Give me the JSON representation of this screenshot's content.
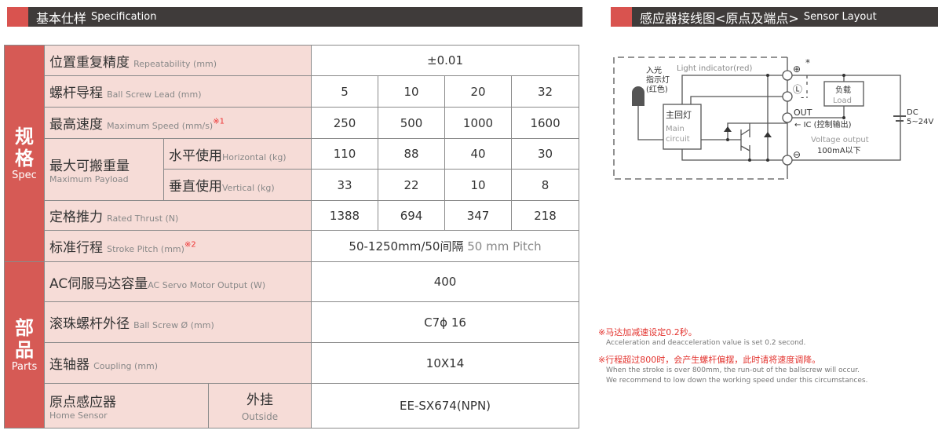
{
  "spec_header": {
    "zh": "基本仕样",
    "en": "Specification"
  },
  "sensor_header": {
    "zh": "感应器接线图<原点及端点>",
    "en": "Sensor Layout"
  },
  "side": {
    "spec_zh1": "规",
    "spec_zh2": "格",
    "spec_en": "Spec",
    "parts_zh1": "部",
    "parts_zh2": "品",
    "parts_en": "Parts"
  },
  "rows": {
    "repeatability": {
      "zh": "位置重复精度",
      "en": "Repeatability (mm)",
      "value": "±0.01"
    },
    "lead": {
      "zh": "螺杆导程",
      "en": "Ball Screw Lead (mm)",
      "values": [
        "5",
        "10",
        "20",
        "32"
      ]
    },
    "speed": {
      "zh": "最高速度",
      "en": "Maximum Speed (mm/s)",
      "note": "※1",
      "values": [
        "250",
        "500",
        "1000",
        "1600"
      ]
    },
    "payload": {
      "zh": "最大可搬重量",
      "en": "Maximum Payload",
      "horizontal": {
        "zh": "水平使用",
        "en": "Horizontal (kg)",
        "values": [
          "110",
          "88",
          "40",
          "30"
        ]
      },
      "vertical": {
        "zh": "垂直使用",
        "en": "Vertical (kg)",
        "values": [
          "33",
          "22",
          "10",
          "8"
        ]
      }
    },
    "thrust": {
      "zh": "定格推力",
      "en": "Rated Thrust (N)",
      "values": [
        "1388",
        "694",
        "347",
        "218"
      ]
    },
    "stroke": {
      "zh": "标准行程",
      "en": "Stroke Pitch (mm)",
      "note": "※2",
      "value": "50-1250mm/50间隔",
      "value_en": "50 mm Pitch"
    },
    "motor": {
      "zh": "AC伺服马达容量",
      "en": "AC Servo Motor Output (W)",
      "value": "400"
    },
    "screw": {
      "zh": "滚珠螺杆外径",
      "en": "Ball Screw Ø (mm)",
      "value": "C7ϕ 16"
    },
    "coupling": {
      "zh": "连轴器",
      "en": "Coupling (mm)",
      "value": "10X14"
    },
    "home": {
      "zh": "原点感应器",
      "en": "Home Sensor",
      "mount_zh": "外挂",
      "mount_en": "Outside",
      "value": "EE-SX674(NPN)"
    }
  },
  "diagram": {
    "light": "Light indicator(red)",
    "led_zh1": "入光",
    "led_zh2": "指示灯",
    "led_zh3": "(红色)",
    "main_zh": "主回灯",
    "main_en1": "Main",
    "main_en2": "circuit",
    "load_zh": "负载",
    "load_en": "Load",
    "out": "OUT",
    "ic": "IC (控制输出)",
    "vout": "Voltage output",
    "ma": "100mA以下",
    "dc1": "DC",
    "dc2": "5~24V",
    "plus": "⊕",
    "star": "*",
    "l": "Ⓛ",
    "minus": "⊖",
    "dash": "-"
  },
  "notes": [
    {
      "zh": "※马达加减速设定0.2秒。",
      "en": [
        "Acceleration and deacceleration value is set 0.2 second."
      ]
    },
    {
      "zh": "※行程超过800时，会产生螺杆偏摆，此时请将速度调降。",
      "en": [
        "When the stroke is over 800mm, the run-out of the ballscrew will occur.",
        "We recommend to low down the working speed under this circumstances."
      ]
    }
  ],
  "colors": {
    "accent": "#d65a55",
    "label_bg": "#f6dcd7",
    "header_bg": "#3f3b3a"
  }
}
